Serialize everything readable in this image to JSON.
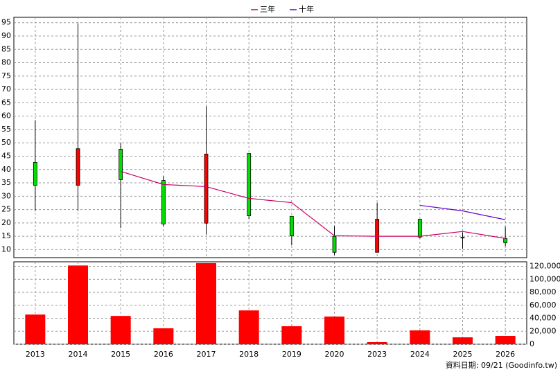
{
  "chart_data": {
    "type": "candlestick",
    "categories": [
      "2013",
      "2014",
      "2015",
      "2016",
      "2017",
      "2018",
      "2019",
      "2020",
      "2023",
      "2024",
      "2025",
      "2026"
    ],
    "ohlc": {
      "open": [
        42.7,
        34.1,
        47.6,
        35.9,
        19.9,
        46.0,
        22.5,
        15.0,
        9.0,
        21.4,
        14.6,
        14.2
      ],
      "high": [
        58.5,
        94.7,
        49.9,
        37.5,
        63.7,
        46.0,
        22.5,
        18.8,
        27.6,
        21.4,
        16.5,
        18.6
      ],
      "low": [
        24.5,
        24.5,
        18.1,
        18.8,
        15.7,
        21.4,
        11.6,
        8.0,
        9.0,
        14.2,
        10.3,
        11.3
      ],
      "close": [
        34.1,
        47.8,
        36.2,
        19.6,
        45.8,
        22.7,
        15.2,
        9.0,
        21.4,
        14.7,
        14.4,
        12.6
      ],
      "up_color": "#ff0000",
      "down_color": "#00e000"
    },
    "series": [
      {
        "name": "三年",
        "color": "#cc0066",
        "values": [
          null,
          null,
          39.3,
          34.4,
          33.6,
          29.2,
          27.6,
          15.2,
          15.0,
          15.0,
          16.8,
          14.2
        ]
      },
      {
        "name": "十年",
        "color": "#6600cc",
        "values": [
          null,
          null,
          null,
          null,
          null,
          null,
          null,
          null,
          null,
          26.6,
          24.5,
          21.2
        ]
      }
    ],
    "ylim": [
      7,
      97
    ],
    "yticks": [
      10,
      15,
      20,
      25,
      30,
      35,
      40,
      45,
      50,
      55,
      60,
      65,
      70,
      75,
      80,
      85,
      90,
      95
    ],
    "volume": {
      "color": "#ff0000",
      "values": [
        45700,
        121300,
        43600,
        24500,
        125000,
        52100,
        27700,
        42600,
        3200,
        21300,
        10600,
        12800
      ],
      "ylim": [
        0,
        127000
      ],
      "yticks": [
        0,
        {
          "value": 20000,
          "label": "20,000"
        },
        {
          "value": 40000,
          "label": "40,000"
        },
        {
          "value": 60000,
          "label": "60,000"
        },
        {
          "value": 80000,
          "label": "80,000"
        },
        {
          "value": 100000,
          "label": "100,000"
        },
        {
          "value": 120000,
          "label": "120,000"
        }
      ]
    },
    "grid": true,
    "source": "資料日期: 09/21  (Goodinfo.tw)"
  }
}
